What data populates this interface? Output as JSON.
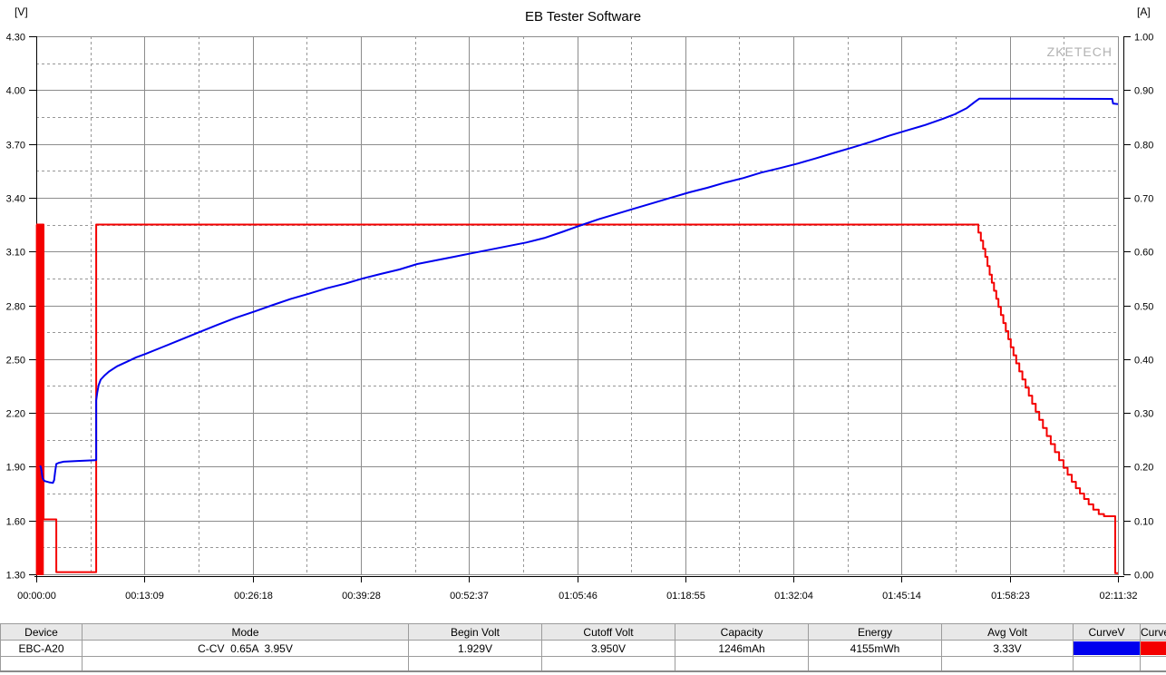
{
  "colors": {
    "voltage": "#0000ee",
    "current": "#f40000",
    "grid_major": "#8c8c8c",
    "grid_minor": "#979797",
    "plot_border": "#8c8c8c",
    "axis": "#000000",
    "watermark": "#b2b2b2",
    "table_header_bg": "#e8e8e8"
  },
  "chart_data": {
    "type": "line",
    "title": "EB Tester Software",
    "watermark": "ZKETECH",
    "grid": "on",
    "left_axis": {
      "unit": "[V]",
      "min": 1.3,
      "max": 4.3,
      "ticks": [
        "4.30",
        "4.00",
        "3.70",
        "3.40",
        "3.10",
        "2.80",
        "2.50",
        "2.20",
        "1.90",
        "1.60",
        "1.30"
      ]
    },
    "right_axis": {
      "unit": "[A]",
      "min": 0.0,
      "max": 1.0,
      "ticks": [
        "1.00",
        "0.90",
        "0.80",
        "0.70",
        "0.60",
        "0.50",
        "0.40",
        "0.30",
        "0.20",
        "0.10",
        "0.00"
      ]
    },
    "x_axis": {
      "min_seconds": 0,
      "max_seconds": 7892,
      "ticks": [
        "00:00:00",
        "00:13:09",
        "00:26:18",
        "00:39:28",
        "00:52:37",
        "01:05:46",
        "01:18:55",
        "01:32:04",
        "01:45:14",
        "01:58:23",
        "02:11:32"
      ]
    },
    "series": [
      {
        "name": "CurveA",
        "axis": "right",
        "color_key": "current",
        "interp": "step",
        "points": [
          [
            0,
            0.65
          ],
          [
            4,
            0
          ],
          [
            8,
            0.65
          ],
          [
            12,
            0
          ],
          [
            16,
            0.65
          ],
          [
            20,
            0
          ],
          [
            24,
            0.65
          ],
          [
            28,
            0
          ],
          [
            32,
            0.65
          ],
          [
            36,
            0
          ],
          [
            40,
            0.65
          ],
          [
            44,
            0
          ],
          [
            48,
            0.65
          ],
          [
            53,
            0.102
          ],
          [
            146,
            0.004
          ],
          [
            437,
            0.65
          ],
          [
            6874,
            0.635
          ],
          [
            6892,
            0.62
          ],
          [
            6908,
            0.605
          ],
          [
            6924,
            0.59
          ],
          [
            6940,
            0.573
          ],
          [
            6956,
            0.557
          ],
          [
            6972,
            0.542
          ],
          [
            6988,
            0.527
          ],
          [
            7004,
            0.512
          ],
          [
            7020,
            0.497
          ],
          [
            7038,
            0.482
          ],
          [
            7056,
            0.467
          ],
          [
            7074,
            0.452
          ],
          [
            7092,
            0.437
          ],
          [
            7110,
            0.422
          ],
          [
            7130,
            0.407
          ],
          [
            7150,
            0.392
          ],
          [
            7172,
            0.377
          ],
          [
            7195,
            0.362
          ],
          [
            7218,
            0.347
          ],
          [
            7242,
            0.332
          ],
          [
            7266,
            0.317
          ],
          [
            7292,
            0.302
          ],
          [
            7318,
            0.287
          ],
          [
            7345,
            0.272
          ],
          [
            7373,
            0.257
          ],
          [
            7402,
            0.242
          ],
          [
            7432,
            0.227
          ],
          [
            7463,
            0.212
          ],
          [
            7495,
            0.198
          ],
          [
            7525,
            0.185
          ],
          [
            7555,
            0.172
          ],
          [
            7585,
            0.16
          ],
          [
            7615,
            0.15
          ],
          [
            7645,
            0.14
          ],
          [
            7678,
            0.13
          ],
          [
            7712,
            0.12
          ],
          [
            7752,
            0.112
          ],
          [
            7790,
            0.108
          ],
          [
            7872,
            0.002
          ],
          [
            7892,
            0.002
          ]
        ]
      },
      {
        "name": "CurveV",
        "axis": "left",
        "color_key": "voltage",
        "interp": "linear",
        "points": [
          [
            26,
            1.905
          ],
          [
            33,
            1.9
          ],
          [
            40,
            1.87
          ],
          [
            46,
            1.835
          ],
          [
            60,
            1.82
          ],
          [
            100,
            1.812
          ],
          [
            122,
            1.81
          ],
          [
            130,
            1.825
          ],
          [
            138,
            1.875
          ],
          [
            146,
            1.915
          ],
          [
            165,
            1.922
          ],
          [
            200,
            1.928
          ],
          [
            300,
            1.932
          ],
          [
            430,
            1.936
          ],
          [
            437,
            1.938
          ],
          [
            437,
            2.27
          ],
          [
            445,
            2.315
          ],
          [
            455,
            2.355
          ],
          [
            470,
            2.385
          ],
          [
            500,
            2.41
          ],
          [
            530,
            2.43
          ],
          [
            590,
            2.46
          ],
          [
            660,
            2.485
          ],
          [
            730,
            2.51
          ],
          [
            800,
            2.53
          ],
          [
            930,
            2.57
          ],
          [
            1060,
            2.61
          ],
          [
            1190,
            2.65
          ],
          [
            1320,
            2.69
          ],
          [
            1455,
            2.73
          ],
          [
            1590,
            2.765
          ],
          [
            1720,
            2.8
          ],
          [
            1855,
            2.835
          ],
          [
            1990,
            2.865
          ],
          [
            2120,
            2.895
          ],
          [
            2250,
            2.92
          ],
          [
            2385,
            2.95
          ],
          [
            2515,
            2.975
          ],
          [
            2650,
            3.0
          ],
          [
            2780,
            3.03
          ],
          [
            2910,
            3.05
          ],
          [
            3045,
            3.07
          ],
          [
            3175,
            3.09
          ],
          [
            3310,
            3.11
          ],
          [
            3440,
            3.13
          ],
          [
            3575,
            3.15
          ],
          [
            3705,
            3.175
          ],
          [
            3840,
            3.21
          ],
          [
            3970,
            3.245
          ],
          [
            4105,
            3.28
          ],
          [
            4235,
            3.31
          ],
          [
            4365,
            3.34
          ],
          [
            4500,
            3.37
          ],
          [
            4630,
            3.4
          ],
          [
            4765,
            3.43
          ],
          [
            4895,
            3.455
          ],
          [
            5030,
            3.485
          ],
          [
            5160,
            3.51
          ],
          [
            5290,
            3.54
          ],
          [
            5425,
            3.565
          ],
          [
            5555,
            3.59
          ],
          [
            5690,
            3.62
          ],
          [
            5820,
            3.65
          ],
          [
            5955,
            3.68
          ],
          [
            6085,
            3.71
          ],
          [
            6220,
            3.745
          ],
          [
            6350,
            3.775
          ],
          [
            6485,
            3.805
          ],
          [
            6615,
            3.84
          ],
          [
            6700,
            3.865
          ],
          [
            6790,
            3.9
          ],
          [
            6850,
            3.935
          ],
          [
            6880,
            3.952
          ],
          [
            7300,
            3.952
          ],
          [
            7850,
            3.951
          ],
          [
            7856,
            3.925
          ],
          [
            7892,
            3.922
          ]
        ]
      }
    ]
  },
  "table": {
    "headers": [
      "Device",
      "Mode",
      "Begin Volt",
      "Cutoff Volt",
      "Capacity",
      "Energy",
      "Avg Volt",
      "CurveV",
      "CurveA"
    ],
    "row": {
      "device": "EBC-A20",
      "mode": "C-CV  0.65A  3.95V",
      "begin_volt": "1.929V",
      "cutoff_volt": "3.950V",
      "capacity": "1246mAh",
      "energy": "4155mWh",
      "avg_volt": "3.33V"
    }
  }
}
